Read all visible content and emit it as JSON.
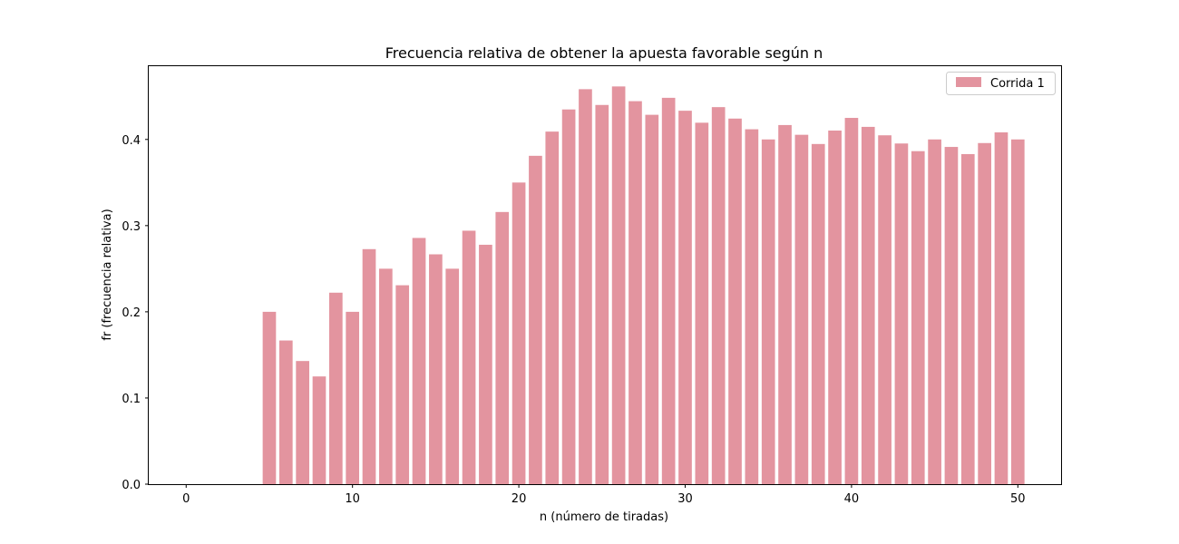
{
  "chart_data": {
    "type": "bar",
    "title": "Frecuencia relativa de obtener la apuesta favorable según n",
    "xlabel": "n (número de tiradas)",
    "ylabel": "fr (frecuencia relativa)",
    "xlim": [
      -2.25,
      52.6
    ],
    "ylim": [
      0,
      0.485
    ],
    "xticks": [
      0,
      10,
      20,
      30,
      40,
      50
    ],
    "yticks": [
      0.0,
      0.1,
      0.2,
      0.3,
      0.4
    ],
    "xtick_labels": [
      "0",
      "10",
      "20",
      "30",
      "40",
      "50"
    ],
    "ytick_labels": [
      "0.0",
      "0.1",
      "0.2",
      "0.3",
      "0.4"
    ],
    "bar_width": 0.8,
    "grid": false,
    "legend_position": "top-right",
    "series": [
      {
        "name": "Corrida 1",
        "color": "#e3949f",
        "x": [
          1,
          2,
          3,
          4,
          5,
          6,
          7,
          8,
          9,
          10,
          11,
          12,
          13,
          14,
          15,
          16,
          17,
          18,
          19,
          20,
          21,
          22,
          23,
          24,
          25,
          26,
          27,
          28,
          29,
          30,
          31,
          32,
          33,
          34,
          35,
          36,
          37,
          38,
          39,
          40,
          41,
          42,
          43,
          44,
          45,
          46,
          47,
          48,
          49,
          50
        ],
        "values": [
          0,
          0,
          0,
          0,
          0.2,
          0.1667,
          0.1429,
          0.125,
          0.2222,
          0.2,
          0.2727,
          0.25,
          0.2308,
          0.2857,
          0.2667,
          0.25,
          0.2941,
          0.2778,
          0.3158,
          0.35,
          0.381,
          0.4091,
          0.4348,
          0.4583,
          0.44,
          0.4615,
          0.4444,
          0.4286,
          0.4483,
          0.4333,
          0.4194,
          0.4375,
          0.4242,
          0.4118,
          0.4,
          0.4167,
          0.4054,
          0.3947,
          0.4103,
          0.425,
          0.4146,
          0.4048,
          0.3953,
          0.3864,
          0.4,
          0.3913,
          0.383,
          0.3958,
          0.4082,
          0.4
        ]
      }
    ]
  }
}
